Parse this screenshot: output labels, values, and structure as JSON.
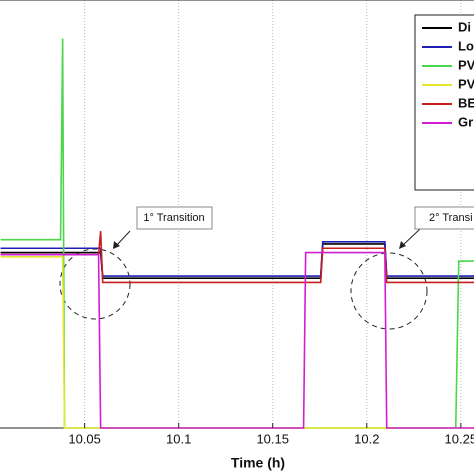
{
  "chart_data": {
    "type": "line",
    "xlabel": "Time (h)",
    "x": [
      10.0053,
      10.0372,
      10.0383,
      10.0393,
      10.0574,
      10.0585,
      10.0596,
      10.1664,
      10.1675,
      10.1755,
      10.1766,
      10.2096,
      10.2106,
      10.2117,
      10.2473,
      10.2489,
      10.2574
    ],
    "xlim": [
      10.005,
      10.257
    ],
    "xticks": [
      10.05,
      10.1,
      10.15,
      10.2,
      10.25
    ],
    "ylim": [
      0,
      100
    ],
    "grid": true,
    "legend": "top-right",
    "annotations": [
      "1° Transition",
      "2° Transi"
    ],
    "series": [
      {
        "name": "Di",
        "color": "#000000",
        "values": [
          41,
          41,
          41,
          41,
          41,
          41,
          35,
          35,
          35,
          35,
          43,
          43,
          35,
          35,
          35,
          35,
          35
        ]
      },
      {
        "name": "Lo",
        "color": "#1f1fb4",
        "values": [
          42,
          42,
          42,
          42,
          42,
          42,
          35.5,
          35.5,
          35.5,
          35.5,
          43.5,
          43.5,
          35.5,
          35.5,
          35.5,
          35.5,
          35.5
        ]
      },
      {
        "name": "PV",
        "color": "#4cd64c",
        "values": [
          44,
          44,
          91,
          0,
          0,
          0,
          0,
          0,
          0,
          0,
          0,
          0,
          0,
          0,
          0,
          39,
          39
        ]
      },
      {
        "name": "PV",
        "color": "#e6e62e",
        "values": [
          40,
          40,
          40,
          0,
          0,
          0,
          0,
          0,
          0,
          0,
          0,
          0,
          0,
          0,
          0,
          0,
          0
        ]
      },
      {
        "name": "BE",
        "color": "#c81e1e",
        "values": [
          40.5,
          40.5,
          40.5,
          40.5,
          40.5,
          46,
          34,
          34,
          34,
          34,
          42,
          42,
          34,
          34,
          34,
          34,
          34
        ]
      },
      {
        "name": "Gr",
        "color": "#d21ed2",
        "values": [
          40.5,
          40.5,
          40.5,
          40.5,
          40.5,
          0,
          0,
          0,
          41,
          41,
          41,
          41,
          0,
          0,
          0,
          0,
          0
        ]
      }
    ]
  }
}
